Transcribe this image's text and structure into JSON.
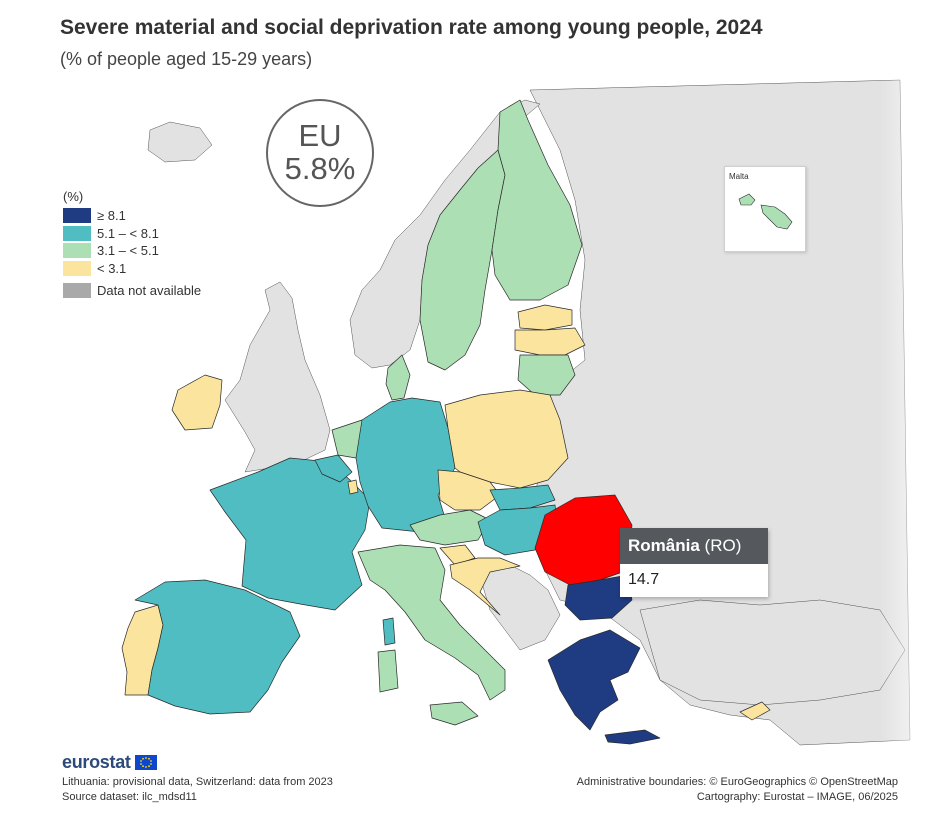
{
  "title": "Severe material and social deprivation rate among young people, 2024",
  "subtitle": "(% of people aged 15-29 years)",
  "eu_badge": {
    "label": "EU",
    "value": "5.8%"
  },
  "legend": {
    "title": "(%)",
    "items": [
      {
        "label": "≥ 8.1",
        "color": "#1f3b82"
      },
      {
        "label": "5.1 – < 8.1",
        "color": "#4fbdc1"
      },
      {
        "label": "3.1 – < 5.1",
        "color": "#acdfb4"
      },
      {
        "label": "< 3.1",
        "color": "#fbe59e"
      }
    ],
    "not_available": {
      "label": "Data not available",
      "color": "#a9a9a9"
    }
  },
  "colors": {
    "non_eu": "#e2e2e2",
    "sea": "#ffffff",
    "highlight": "#ff0000",
    "border": "#2a2a2a"
  },
  "inset": {
    "label": "Malta"
  },
  "tooltip": {
    "country": "România",
    "code": "(RO)",
    "value": "14.7"
  },
  "branding": {
    "name": "eurostat"
  },
  "footer": {
    "note": "Lithuania: provisional data, Switzerland: data from 2023",
    "source": "Source dataset: ilc_mdsd11",
    "boundaries": "Administrative boundaries: © EuroGeographics © OpenStreetMap",
    "cartography": "Cartography: Eurostat – IMAGE, 06/2025"
  }
}
